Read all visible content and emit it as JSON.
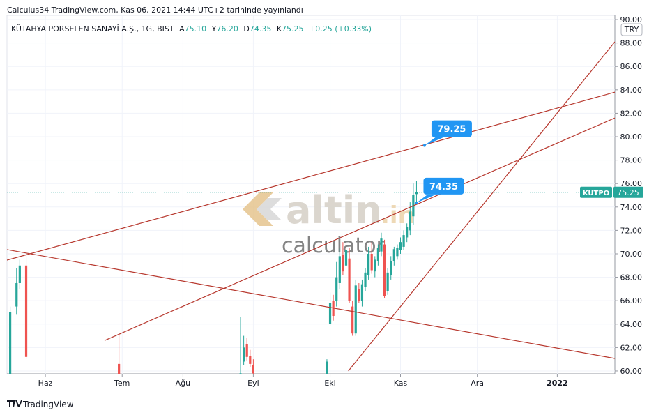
{
  "chart_data": {
    "type": "candlestick",
    "header": "Calculus34 TradingView.com, Kas 06, 2021 14:44 UTC+2 tarihinde yayınlandı",
    "symbol": "KÜTAHYA PORSELEN SANAYİ A.Ş., 1G, BIST",
    "ticker": "KUTPO",
    "currency": "TRY",
    "legend_keys": {
      "open": "A",
      "high": "Y",
      "low": "D",
      "close": "K"
    },
    "last_labels": {
      "open": "75.10",
      "high": "76.20",
      "low": "74.35",
      "close": "75.25"
    },
    "change": "+0.25 (+0.33%)",
    "watermark": {
      "main": "altin",
      "suffix": ".in",
      "sub": "calculator"
    },
    "footer": "TradingView",
    "up_color": "#26a69a",
    "down_color": "#ef5350",
    "x": [
      0,
      2,
      3,
      5,
      34,
      72,
      73,
      74,
      75,
      76,
      99,
      100,
      101,
      102,
      103,
      104,
      105,
      106,
      107,
      108,
      109,
      110,
      111,
      112,
      113,
      114,
      115,
      116,
      117,
      118,
      119,
      120,
      121,
      122,
      123,
      124,
      125,
      126,
      127
    ],
    "open": [
      58,
      65.5,
      67.5,
      69,
      60.6,
      58,
      60.8,
      62.3,
      61.3,
      60.5,
      59,
      64,
      66,
      66,
      67.5,
      69.9,
      69,
      69.6,
      65.5,
      63.2,
      67,
      66,
      67.2,
      68.2,
      70,
      68.5,
      69.4,
      70.2,
      70.8,
      66.8,
      68.2,
      69.4,
      69.8,
      70.3,
      70.6,
      71.4,
      72,
      73.2,
      75.1
    ],
    "high": [
      65.5,
      68.8,
      69.5,
      70.2,
      63.2,
      64.6,
      63,
      62.8,
      61.8,
      61,
      61,
      66.7,
      66.5,
      69.3,
      70.5,
      71,
      71.5,
      70.5,
      66,
      67.8,
      67.5,
      67.8,
      68.8,
      70.6,
      71,
      69.8,
      70.8,
      71.8,
      71.2,
      68.8,
      69.8,
      70.6,
      70.8,
      71.4,
      72,
      72.6,
      74.4,
      76,
      76.2
    ],
    "low": [
      57,
      64.8,
      67,
      61,
      58,
      57,
      60.5,
      60.9,
      60.3,
      59.5,
      58.5,
      63.8,
      64.3,
      65.5,
      67,
      68.2,
      68.6,
      65.8,
      63,
      63,
      65.8,
      65.5,
      66.8,
      67.8,
      68.3,
      68,
      69,
      69.8,
      66.2,
      66.5,
      67.8,
      69,
      69.5,
      70,
      70.3,
      71,
      71.6,
      72.5,
      74.35
    ],
    "close": [
      65,
      67.5,
      69,
      61.2,
      59.3,
      59.8,
      62,
      61.2,
      60.6,
      59.8,
      60.8,
      65.8,
      64.7,
      68,
      69.8,
      68.5,
      70.3,
      66,
      63.2,
      67.3,
      66,
      67.4,
      68.4,
      70,
      68.6,
      69.5,
      70.5,
      71.3,
      66.4,
      68.4,
      69.4,
      70.4,
      70.5,
      71,
      71.6,
      72.3,
      73.6,
      75,
      75.25
    ],
    "xlim": [
      -1,
      189
    ],
    "xticks": [
      {
        "value": 11,
        "label": "Haz"
      },
      {
        "value": 35,
        "label": "Tem"
      },
      {
        "value": 54,
        "label": "Ağu"
      },
      {
        "value": 76,
        "label": "Eyl"
      },
      {
        "value": 100,
        "label": "Eki"
      },
      {
        "value": 122,
        "label": "Kas"
      },
      {
        "value": 146,
        "label": "Ara"
      },
      {
        "value": 171,
        "label": "2022"
      }
    ],
    "ylim": [
      59.64,
      90.36
    ],
    "yticks": [
      {
        "value": 60,
        "label": "60.00"
      },
      {
        "value": 62,
        "label": "62.00"
      },
      {
        "value": 64,
        "label": "64.00"
      },
      {
        "value": 66,
        "label": "66.00"
      },
      {
        "value": 68,
        "label": "68.00"
      },
      {
        "value": 70,
        "label": "70.00"
      },
      {
        "value": 72,
        "label": "72.00"
      },
      {
        "value": 74,
        "label": "74.00"
      },
      {
        "value": 76,
        "label": "76.00"
      },
      {
        "value": 78,
        "label": "78.00"
      },
      {
        "value": 80,
        "label": "80.00"
      },
      {
        "value": 82,
        "label": "82.00"
      },
      {
        "value": 84,
        "label": "84.00"
      },
      {
        "value": 86,
        "label": "86.00"
      },
      {
        "value": 88,
        "label": "88.00"
      },
      {
        "value": 90,
        "label": "90.00"
      }
    ],
    "grid": true,
    "trend_lines": [
      {
        "color": "#b7372d",
        "x": [
          -1,
          189
        ],
        "y": [
          69.46,
          83.8
        ]
      },
      {
        "color": "#b7372d",
        "x": [
          29.5,
          189
        ],
        "y": [
          62.6,
          81.6
        ]
      },
      {
        "color": "#b7372d",
        "x": [
          -1,
          189
        ],
        "y": [
          70.36,
          61.07
        ]
      },
      {
        "color": "#b7372d",
        "x": [
          105.7,
          189
        ],
        "y": [
          60,
          88.1
        ]
      }
    ],
    "callouts": [
      {
        "x": 129.5,
        "value": 79.25
      },
      {
        "x": 127,
        "value": 74.35
      }
    ]
  }
}
